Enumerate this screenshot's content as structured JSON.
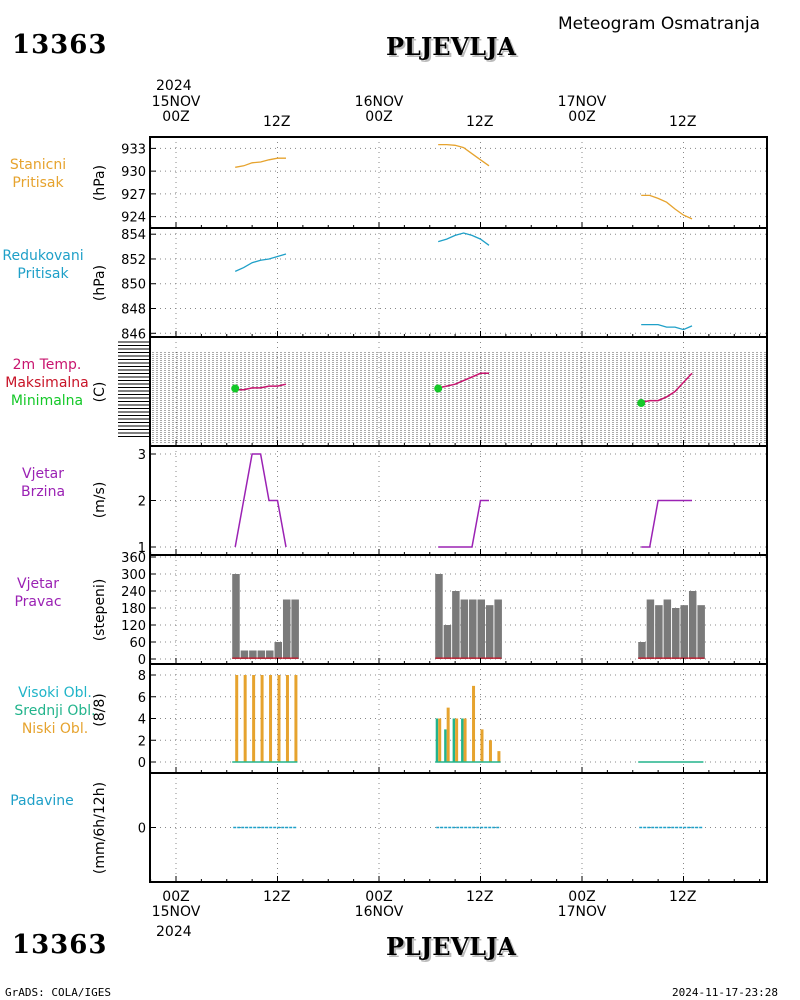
{
  "header": {
    "station_id": "13363",
    "station_name": "PLJEVLJA",
    "title": "Meteogram Osmatranja"
  },
  "footer": {
    "station_id": "13363",
    "station_name": "PLJEVLJA",
    "left": "GrADS: COLA/IGES",
    "right": "2024-11-17-23:28"
  },
  "time_axis": {
    "year": "2024",
    "days": [
      {
        "hour": "00Z",
        "date": "15NOV"
      },
      {
        "hour": "00Z",
        "date": "16NOV"
      },
      {
        "hour": "00Z",
        "date": "17NOV"
      }
    ],
    "midday_label": "12Z"
  },
  "panels": {
    "pressure": {
      "label1": "Stanicni",
      "label2": "Pritisak",
      "unit": "(hPa)",
      "color": "#e6a32e"
    },
    "reduced": {
      "label1": "Redukovani",
      "label2": "Pritisak",
      "unit": "(hPa)",
      "color": "#1fa0c8"
    },
    "temp": {
      "label1": "2m Temp.",
      "label2": "Maksimalna",
      "label3": "Minimalna",
      "unit": "(C)",
      "color1": "#c8146e",
      "color2": "#c81428",
      "color3": "#14c828"
    },
    "wind_speed": {
      "label1": "Vjetar",
      "label2": "Brzina",
      "unit": "(m/s)",
      "color": "#9b22b4"
    },
    "wind_dir": {
      "label1": "Vjetar",
      "label2": "Pravac",
      "unit": "(stepeni)",
      "color": "#9b22b4"
    },
    "clouds": {
      "label1": "Visoki Obl.",
      "label2": "Srednji Obl.",
      "label3": "Niski Obl.",
      "unit": "(8/8)",
      "color1": "#1fb4c8",
      "color2": "#22b48c",
      "color3": "#e6a32e"
    },
    "precip": {
      "label1": "Padavine",
      "unit": "(mm/6h/12h)",
      "color": "#1fa0c8"
    }
  },
  "chart_data": [
    {
      "type": "line",
      "name": "Stanicni Pritisak",
      "ylabel": "(hPa)",
      "ylim": [
        922.5,
        934.5
      ],
      "yticks": [
        924,
        927,
        930,
        933
      ],
      "x_hours": [
        7,
        8,
        9,
        10,
        11,
        12,
        13,
        31,
        32,
        33,
        34,
        35,
        36,
        37,
        55,
        56,
        57,
        58,
        59,
        60,
        61
      ],
      "segments": [
        {
          "x": [
            7,
            8,
            9,
            10,
            11,
            12,
            13
          ],
          "y": [
            930.5,
            930.7,
            931.1,
            931.2,
            931.5,
            931.7,
            931.7
          ]
        },
        {
          "x": [
            31,
            32,
            33,
            34,
            35,
            36,
            37
          ],
          "y": [
            933.5,
            933.5,
            933.4,
            933.1,
            932.3,
            931.5,
            930.7
          ]
        },
        {
          "x": [
            55,
            56,
            57,
            58,
            59,
            60,
            61
          ],
          "y": [
            926.8,
            926.8,
            926.4,
            925.9,
            925.0,
            924.2,
            923.7
          ]
        }
      ]
    },
    {
      "type": "line",
      "name": "Redukovani Pritisak",
      "ylabel": "(hPa)",
      "ylim": [
        845.7,
        854.5
      ],
      "yticks": [
        846,
        848,
        850,
        852,
        854
      ],
      "segments": [
        {
          "x": [
            7,
            8,
            9,
            10,
            11,
            12,
            13
          ],
          "y": [
            851.0,
            851.3,
            851.7,
            851.9,
            852.0,
            852.2,
            852.4
          ]
        },
        {
          "x": [
            31,
            32,
            33,
            34,
            35,
            36,
            37
          ],
          "y": [
            853.4,
            853.6,
            853.9,
            854.1,
            853.9,
            853.6,
            853.1
          ]
        },
        {
          "x": [
            55,
            56,
            57,
            58,
            59,
            60,
            61
          ],
          "y": [
            846.7,
            846.7,
            846.7,
            846.5,
            846.5,
            846.3,
            846.6
          ]
        }
      ]
    },
    {
      "type": "line",
      "name": "2m Temp.",
      "ylabel": "(C)",
      "segments": [
        {
          "x": [
            7,
            8,
            9,
            10,
            11,
            12,
            13
          ],
          "y": [
            0.1,
            0.1,
            0.2,
            0.2,
            0.3,
            0.3,
            0.4
          ]
        },
        {
          "x": [
            31,
            32,
            33,
            34,
            35,
            36,
            37
          ],
          "y": [
            0.2,
            0.3,
            0.4,
            0.6,
            0.8,
            1.0,
            1.0
          ]
        },
        {
          "x": [
            55,
            56,
            57,
            58,
            59,
            60,
            61
          ],
          "y": [
            -0.6,
            -0.5,
            -0.5,
            -0.3,
            0.0,
            0.5,
            1.0
          ]
        }
      ],
      "minimum_points": [
        {
          "x": 7,
          "y": 0.0
        },
        {
          "x": 31,
          "y": 0.0
        },
        {
          "x": 55,
          "y": -0.8
        }
      ]
    },
    {
      "type": "line",
      "name": "Vjetar Brzina",
      "ylabel": "(m/s)",
      "ylim": [
        1,
        3
      ],
      "yticks": [
        1,
        2,
        3
      ],
      "segments": [
        {
          "x": [
            7,
            9,
            10,
            11,
            12,
            13
          ],
          "y": [
            1,
            3,
            3,
            2,
            2,
            1
          ]
        },
        {
          "x": [
            31,
            35,
            36,
            37
          ],
          "y": [
            1,
            1,
            2,
            2
          ]
        },
        {
          "x": [
            55,
            56,
            57,
            58,
            59,
            60,
            61
          ],
          "y": [
            1,
            1,
            2,
            2,
            2,
            2,
            2
          ]
        }
      ]
    },
    {
      "type": "bar",
      "name": "Vjetar Pravac",
      "ylabel": "(stepeni)",
      "ylim": [
        0,
        360
      ],
      "yticks": [
        0,
        60,
        120,
        180,
        240,
        300,
        360
      ],
      "x": [
        7,
        8,
        9,
        10,
        11,
        12,
        13,
        14,
        31,
        32,
        33,
        34,
        35,
        36,
        37,
        38,
        55,
        56,
        57,
        58,
        59,
        60,
        61,
        62
      ],
      "values": [
        300,
        30,
        30,
        30,
        30,
        60,
        210,
        210,
        300,
        120,
        240,
        210,
        210,
        210,
        190,
        210,
        60,
        210,
        190,
        210,
        180,
        190,
        240,
        190
      ]
    },
    {
      "type": "bar",
      "name": "Oblacnost",
      "ylabel": "(8/8)",
      "ylim": [
        0,
        8
      ],
      "yticks": [
        0,
        2,
        4,
        6,
        8
      ],
      "x": [
        7,
        8,
        9,
        10,
        11,
        12,
        13,
        14,
        31,
        32,
        33,
        34,
        35,
        36,
        37,
        38
      ],
      "series": [
        {
          "name": "Niski Obl.",
          "values": [
            8,
            8,
            8,
            8,
            8,
            8,
            8,
            8,
            4,
            5,
            4,
            4,
            7,
            3,
            2,
            1
          ]
        },
        {
          "name": "Srednji Obl.",
          "values": [
            0,
            0,
            0,
            0,
            0,
            0,
            0,
            0,
            4,
            3,
            4,
            4,
            0,
            0,
            0,
            0
          ]
        }
      ]
    },
    {
      "type": "line",
      "name": "Padavine",
      "ylabel": "(mm/6h/12h)",
      "yticks": [
        0
      ],
      "segments": [
        {
          "x": [
            7,
            14
          ],
          "y": [
            0,
            0
          ]
        },
        {
          "x": [
            31,
            38
          ],
          "y": [
            0,
            0
          ]
        },
        {
          "x": [
            55,
            62
          ],
          "y": [
            0,
            0
          ]
        }
      ]
    }
  ]
}
